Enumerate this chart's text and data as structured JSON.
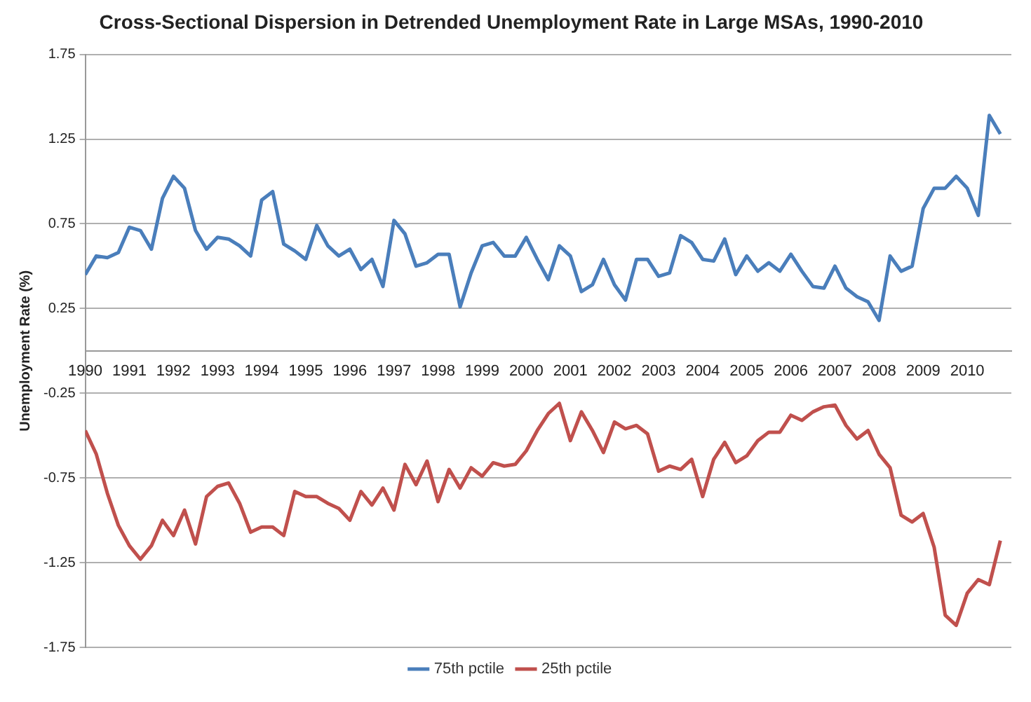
{
  "chart_data": {
    "type": "line",
    "title": "Cross-Sectional Dispersion in Detrended Unemployment Rate in Large MSAs, 1990-2010",
    "ylabel": "Unemployment Rate (%)",
    "x": [
      1990,
      1990.25,
      1990.5,
      1990.75,
      1991,
      1991.25,
      1991.5,
      1991.75,
      1992,
      1992.25,
      1992.5,
      1992.75,
      1993,
      1993.25,
      1993.5,
      1993.75,
      1994,
      1994.25,
      1994.5,
      1994.75,
      1995,
      1995.25,
      1995.5,
      1995.75,
      1996,
      1996.25,
      1996.5,
      1996.75,
      1997,
      1997.25,
      1997.5,
      1997.75,
      1998,
      1998.25,
      1998.5,
      1998.75,
      1999,
      1999.25,
      1999.5,
      1999.75,
      2000,
      2000.25,
      2000.5,
      2000.75,
      2001,
      2001.25,
      2001.5,
      2001.75,
      2002,
      2002.25,
      2002.5,
      2002.75,
      2003,
      2003.25,
      2003.5,
      2003.75,
      2004,
      2004.25,
      2004.5,
      2004.75,
      2005,
      2005.25,
      2005.5,
      2005.75,
      2006,
      2006.25,
      2006.5,
      2006.75,
      2007,
      2007.25,
      2007.5,
      2007.75,
      2008,
      2008.25,
      2008.5,
      2008.75,
      2009,
      2009.25,
      2009.5,
      2009.75,
      2010,
      2010.25,
      2010.5,
      2010.75
    ],
    "series": [
      {
        "name": "75th pctile",
        "color": "#4a7ebb",
        "values": [
          0.45,
          0.56,
          0.55,
          0.58,
          0.73,
          0.71,
          0.6,
          0.9,
          1.03,
          0.96,
          0.71,
          0.6,
          0.67,
          0.66,
          0.62,
          0.56,
          0.89,
          0.94,
          0.63,
          0.59,
          0.54,
          0.74,
          0.62,
          0.56,
          0.6,
          0.48,
          0.54,
          0.38,
          0.77,
          0.69,
          0.5,
          0.52,
          0.57,
          0.57,
          0.26,
          0.46,
          0.62,
          0.64,
          0.56,
          0.56,
          0.67,
          0.54,
          0.42,
          0.62,
          0.56,
          0.35,
          0.39,
          0.54,
          0.39,
          0.3,
          0.54,
          0.54,
          0.44,
          0.46,
          0.68,
          0.64,
          0.54,
          0.53,
          0.66,
          0.45,
          0.56,
          0.47,
          0.52,
          0.47,
          0.57,
          0.47,
          0.38,
          0.37,
          0.5,
          0.37,
          0.32,
          0.29,
          0.18,
          0.56,
          0.47,
          0.5,
          0.84,
          0.96,
          0.96,
          1.03,
          0.96,
          0.8,
          1.39,
          1.28
        ]
      },
      {
        "name": "25th pctile",
        "color": "#c0504d",
        "values": [
          -0.47,
          -0.61,
          -0.84,
          -1.03,
          -1.15,
          -1.23,
          -1.15,
          -1.0,
          -1.09,
          -0.94,
          -1.14,
          -0.86,
          -0.8,
          -0.78,
          -0.9,
          -1.07,
          -1.04,
          -1.04,
          -1.09,
          -0.83,
          -0.86,
          -0.86,
          -0.9,
          -0.93,
          -1.0,
          -0.83,
          -0.91,
          -0.81,
          -0.94,
          -0.67,
          -0.79,
          -0.65,
          -0.89,
          -0.7,
          -0.81,
          -0.69,
          -0.74,
          -0.66,
          -0.68,
          -0.67,
          -0.59,
          -0.47,
          -0.37,
          -0.31,
          -0.53,
          -0.36,
          -0.47,
          -0.6,
          -0.42,
          -0.46,
          -0.44,
          -0.49,
          -0.71,
          -0.68,
          -0.7,
          -0.64,
          -0.86,
          -0.64,
          -0.54,
          -0.66,
          -0.62,
          -0.53,
          -0.48,
          -0.48,
          -0.38,
          -0.41,
          -0.36,
          -0.33,
          -0.32,
          -0.44,
          -0.52,
          -0.47,
          -0.61,
          -0.69,
          -0.97,
          -1.01,
          -0.96,
          -1.16,
          -1.56,
          -1.62,
          -1.43,
          -1.35,
          -1.38,
          -1.12
        ]
      }
    ],
    "xlim": [
      1990,
      2011
    ],
    "xticks": [
      1990,
      1991,
      1992,
      1993,
      1994,
      1995,
      1996,
      1997,
      1998,
      1999,
      2000,
      2001,
      2002,
      2003,
      2004,
      2005,
      2006,
      2007,
      2008,
      2009,
      2010
    ],
    "ylim": [
      -1.75,
      1.75
    ],
    "yticks": [
      -1.75,
      -1.25,
      -0.75,
      -0.25,
      0.25,
      0.75,
      1.25,
      1.75
    ],
    "grid": "y",
    "legend": "bottom",
    "marker": "none",
    "line_style": "solid"
  }
}
